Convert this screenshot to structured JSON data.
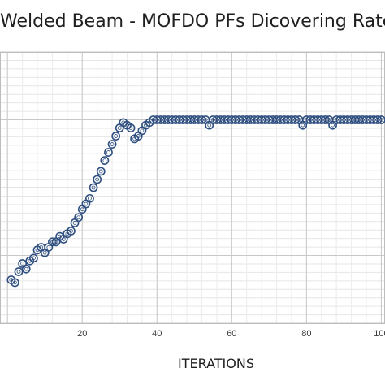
{
  "chart_data": {
    "type": "scatter",
    "title": "Welded Beam - MOFDO PFs Dicovering Rate",
    "xlabel": "ITERATIONS",
    "ylabel": "",
    "xlim": [
      -2,
      101
    ],
    "ylim": [
      0,
      100
    ],
    "x_ticks": [
      20,
      40,
      60,
      80,
      100
    ],
    "x_tick_labels": [
      "20",
      "40",
      "60",
      "80",
      "100"
    ],
    "grid": true,
    "marker": "open-circle",
    "marker_color": "#2f4f80",
    "x": [
      1,
      2,
      3,
      4,
      5,
      6,
      7,
      8,
      9,
      10,
      11,
      12,
      13,
      14,
      15,
      16,
      17,
      18,
      19,
      20,
      21,
      22,
      23,
      24,
      25,
      26,
      27,
      28,
      29,
      30,
      31,
      32,
      33,
      34,
      35,
      36,
      37,
      38,
      39,
      40,
      41,
      42,
      43,
      44,
      45,
      46,
      47,
      48,
      49,
      50,
      51,
      52,
      53,
      54,
      55,
      56,
      57,
      58,
      59,
      60,
      61,
      62,
      63,
      64,
      65,
      66,
      67,
      68,
      69,
      70,
      71,
      72,
      73,
      74,
      75,
      76,
      77,
      78,
      79,
      80,
      81,
      82,
      83,
      84,
      85,
      86,
      87,
      88,
      89,
      90,
      91,
      92,
      93,
      94,
      95,
      96,
      97,
      98,
      99,
      100
    ],
    "y": [
      16,
      15,
      19,
      22,
      20,
      23,
      24,
      27,
      28,
      26,
      28,
      30,
      30,
      32,
      31,
      33,
      34,
      37,
      39,
      42,
      44,
      46,
      50,
      53,
      56,
      60,
      63,
      66,
      69,
      72,
      74,
      73,
      72,
      68,
      69,
      71,
      73,
      74,
      75,
      75,
      75,
      75,
      75,
      75,
      75,
      75,
      75,
      75,
      75,
      75,
      75,
      75,
      75,
      73,
      75,
      75,
      75,
      75,
      75,
      75,
      75,
      75,
      75,
      75,
      75,
      75,
      75,
      75,
      75,
      75,
      75,
      75,
      75,
      75,
      75,
      75,
      75,
      75,
      73,
      75,
      75,
      75,
      75,
      75,
      75,
      75,
      73,
      75,
      75,
      75,
      75,
      75,
      75,
      75,
      75,
      75,
      75,
      75,
      75,
      75
    ]
  }
}
